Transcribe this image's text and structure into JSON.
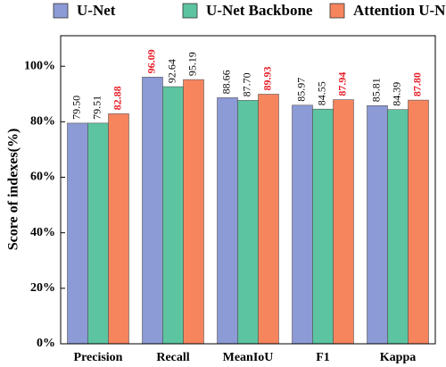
{
  "chart_data": {
    "type": "bar",
    "y_label": "Score of indexes(%)",
    "categories": [
      "Precision",
      "Recall",
      "MeanIoU",
      "F1",
      "Kappa"
    ],
    "series": [
      {
        "name": "U-Net",
        "color": "#8c9ad6",
        "values": [
          79.5,
          96.09,
          88.66,
          85.97,
          85.81
        ],
        "value_labels": [
          "79.50",
          "96.09",
          "88.66",
          "85.97",
          "85.81"
        ]
      },
      {
        "name": "U-Net Backbone",
        "color": "#5cc4a0",
        "values": [
          79.51,
          92.64,
          87.7,
          84.55,
          84.39
        ],
        "value_labels": [
          "79.51",
          "92.64",
          "87.70",
          "84.55",
          "84.39"
        ]
      },
      {
        "name": "Attention U-Net",
        "color": "#f6855e",
        "values": [
          82.88,
          95.19,
          89.93,
          87.94,
          87.8
        ],
        "value_labels": [
          "82.88",
          "95.19",
          "89.93",
          "87.94",
          "87.80"
        ]
      }
    ],
    "highlight_color": "#e8202a",
    "ylim": [
      0,
      111
    ],
    "yticks": [
      {
        "value": 0,
        "label": "0%"
      },
      {
        "value": 20,
        "label": "20%"
      },
      {
        "value": 40,
        "label": "40%"
      },
      {
        "value": 60,
        "label": "60%"
      },
      {
        "value": 80,
        "label": "80%"
      },
      {
        "value": 100,
        "label": "100%"
      }
    ]
  }
}
